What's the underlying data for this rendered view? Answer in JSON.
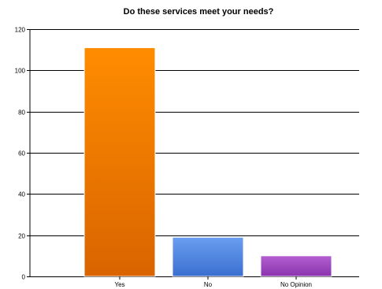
{
  "chart_data": {
    "type": "bar",
    "title": "Do these services meet your needs?",
    "categories": [
      "Yes",
      "No",
      "No Opinion"
    ],
    "values": [
      111,
      19,
      10
    ],
    "xlabel": "",
    "ylabel": "",
    "ylim": [
      0,
      120
    ],
    "yticks": [
      0,
      20,
      40,
      60,
      80,
      100,
      120
    ],
    "grid": true,
    "legend": "none",
    "colors": [
      {
        "top": "#ff8c00",
        "bottom": "#d96400"
      },
      {
        "top": "#6a9ef0",
        "bottom": "#3a6fcf"
      },
      {
        "top": "#b45fd0",
        "bottom": "#8a33ad"
      }
    ]
  }
}
